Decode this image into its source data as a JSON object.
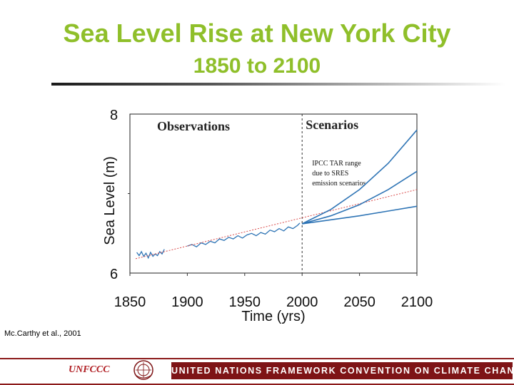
{
  "slide": {
    "title_line1": "Sea Level Rise at New York City",
    "title_line2": "1850 to 2100",
    "source": "Mc.Carthy et al., 2001"
  },
  "footer": {
    "logo_text": "UNFCCC",
    "banner": "UNITED NATIONS FRAMEWORK CONVENTION ON CLIMATE CHANGE",
    "accent_color": "#7e1416"
  },
  "chart_data": {
    "type": "line",
    "xlabel": "Time (yrs)",
    "ylabel": "Sea Level (m)",
    "xlim": [
      1850,
      2100
    ],
    "ylim": [
      6,
      8
    ],
    "x_ticks": [
      "1850",
      "1900",
      "1950",
      "2000",
      "2050",
      "2100"
    ],
    "y_ticks": [
      "6",
      "8"
    ],
    "panel_labels": {
      "left": "Observations",
      "right": "Scenarios"
    },
    "annotation": [
      "IPCC TAR range",
      "due to SRES",
      "emission scenarios"
    ],
    "divider_x": 2000,
    "colors": {
      "series": "#2e74b5",
      "trend": "#d94a4a",
      "title": "#8fbf2a"
    },
    "series": [
      {
        "role": "observations",
        "x": [
          1856,
          1858,
          1860,
          1862,
          1864,
          1866,
          1868,
          1870,
          1872,
          1874,
          1876,
          1878,
          1880
        ],
        "values": [
          6.26,
          6.22,
          6.27,
          6.21,
          6.25,
          6.19,
          6.26,
          6.21,
          6.24,
          6.22,
          6.27,
          6.24,
          6.3
        ]
      },
      {
        "role": "observations",
        "x": [
          1900,
          1904,
          1908,
          1912,
          1916,
          1920,
          1924,
          1928,
          1932,
          1936,
          1940,
          1944,
          1948,
          1952,
          1956,
          1960,
          1964,
          1968,
          1972,
          1976,
          1980,
          1984,
          1988,
          1992,
          1996,
          1998
        ],
        "values": [
          6.34,
          6.36,
          6.33,
          6.38,
          6.36,
          6.4,
          6.38,
          6.43,
          6.41,
          6.45,
          6.43,
          6.47,
          6.44,
          6.48,
          6.5,
          6.47,
          6.51,
          6.49,
          6.54,
          6.52,
          6.56,
          6.53,
          6.58,
          6.56,
          6.6,
          6.63
        ]
      },
      {
        "role": "trend",
        "x": [
          1855,
          2100
        ],
        "values": [
          6.18,
          7.05
        ]
      },
      {
        "role": "scenario",
        "x": [
          2000,
          2025,
          2050,
          2075,
          2100
        ],
        "values": [
          6.62,
          6.8,
          7.05,
          7.38,
          7.8
        ]
      },
      {
        "role": "scenario",
        "x": [
          2000,
          2025,
          2050,
          2075,
          2100
        ],
        "values": [
          6.62,
          6.72,
          6.86,
          7.05,
          7.28
        ]
      },
      {
        "role": "scenario",
        "x": [
          2000,
          2025,
          2050,
          2075,
          2100
        ],
        "values": [
          6.62,
          6.67,
          6.72,
          6.78,
          6.84
        ]
      }
    ]
  }
}
